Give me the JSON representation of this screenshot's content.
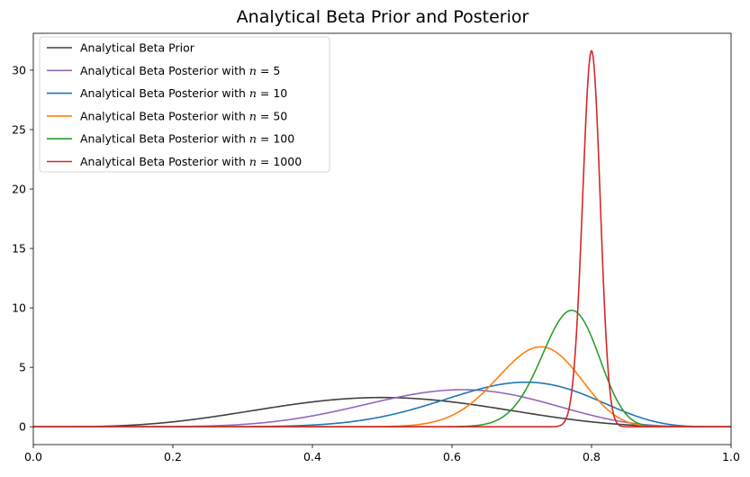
{
  "chart_data": {
    "type": "line",
    "title": "Analytical Beta Prior and Posterior",
    "xlabel": "",
    "ylabel": "",
    "xlim": [
      0.0,
      1.0
    ],
    "ylim": [
      -1.5,
      33.1
    ],
    "x_ticks": [
      0.0,
      0.2,
      0.4,
      0.6,
      0.8,
      1.0
    ],
    "x_tick_labels": [
      "0.0",
      "0.2",
      "0.4",
      "0.6",
      "0.8",
      "1.0"
    ],
    "y_ticks": [
      0,
      5,
      10,
      15,
      20,
      25,
      30
    ],
    "y_tick_labels": [
      "0",
      "5",
      "10",
      "15",
      "20",
      "25",
      "30"
    ],
    "grid": false,
    "legend_position": "top-left",
    "series": [
      {
        "name": "Analytical Beta Prior",
        "prefix": "Analytical Beta Prior",
        "n": "",
        "color": "#404040",
        "alpha": 5,
        "beta": 5
      },
      {
        "name": "Analytical Beta Posterior with n = 5",
        "prefix": "Analytical Beta Posterior with ",
        "n": "5",
        "color": "#9467bd",
        "alpha": 9,
        "beta": 6
      },
      {
        "name": "Analytical Beta Posterior with n = 10",
        "prefix": "Analytical Beta Posterior with ",
        "n": "10",
        "color": "#1f77b4",
        "alpha": 13,
        "beta": 6
      },
      {
        "name": "Analytical Beta Posterior with n = 50",
        "prefix": "Analytical Beta Posterior with ",
        "n": "50",
        "color": "#ff7f0e",
        "alpha": 41,
        "beta": 16
      },
      {
        "name": "Analytical Beta Posterior with n = 100",
        "prefix": "Analytical Beta Posterior with ",
        "n": "100",
        "color": "#2ca02c",
        "alpha": 82,
        "beta": 25
      },
      {
        "name": "Analytical Beta Posterior with n = 1000",
        "prefix": "Analytical Beta Posterior with ",
        "n": "1000",
        "color": "#d62728",
        "alpha": 805,
        "beta": 202
      }
    ]
  }
}
